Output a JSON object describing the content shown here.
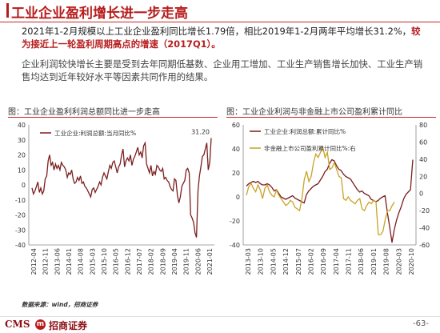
{
  "header": {
    "title": "工业企业盈利增长进一步走高"
  },
  "paragraph1": {
    "plain": "2021年1-2月规模以上工业企业盈利同比增长1.79倍，相比2019年1-2月两年平均增长31.2%，",
    "bold": "较为接近上一轮盈利周期高点的增速（2017Q1）。"
  },
  "paragraph2": "企业利润较快增长主要是受到去年同期低基数、企业用工增加、工业生产销售增长加快、工业生产销售均达到近年较好水平等因素共同作用的结果。",
  "colors": {
    "brand": "#b71c1c",
    "series_dark": "#7b1e1e",
    "series_gold": "#c9a227"
  },
  "chart_left": {
    "title": "图：工业企业盈利利润总额同比进一步走高",
    "chart_data": {
      "type": "line",
      "y_axis": {
        "min": -40,
        "max": 40,
        "ticks": [
          -40,
          -30,
          -20,
          -10,
          0,
          10,
          20,
          30,
          40
        ]
      },
      "x_tick_labels": [
        "2012-04",
        "2012-11",
        "2013-06",
        "2014-01",
        "2014-08",
        "2015-03",
        "2015-10",
        "2016-05",
        "2016-12",
        "2017-07",
        "2018-02",
        "2018-09",
        "2019-04",
        "2019-11",
        "2020-06",
        "2021-01"
      ],
      "series": [
        {
          "name": "工业企业:利润总额:当月同比%",
          "color": "#7b1e1e",
          "values": [
            -2,
            -6,
            -4,
            -1,
            2,
            -5,
            -2,
            -6,
            -4,
            4,
            6,
            16,
            20,
            13,
            15,
            10,
            14,
            11,
            13,
            10,
            15,
            13,
            12,
            10,
            5,
            8,
            7,
            10,
            4,
            1,
            2,
            5,
            3,
            6,
            1,
            2,
            -1,
            -2,
            -4,
            -6,
            -8,
            -3,
            -2,
            -5,
            -3,
            -1,
            2,
            0,
            5,
            8,
            6,
            4,
            9,
            13,
            11,
            15,
            16,
            12,
            8,
            12,
            14,
            20,
            24,
            12,
            16,
            18,
            16,
            20,
            13,
            17,
            19,
            22,
            25,
            20,
            22,
            18,
            26,
            28,
            14,
            11,
            8,
            13,
            6,
            9,
            7,
            13,
            12,
            10,
            9,
            11,
            4,
            5,
            3,
            2,
            -1,
            -3,
            -4,
            4,
            3,
            -7,
            -12,
            -8,
            -1,
            1,
            3,
            10,
            11,
            8,
            -20,
            -22,
            -25,
            -32,
            -35,
            -4,
            6,
            12,
            19,
            20,
            24,
            28,
            10,
            15,
            31.2
          ],
          "last_label": "31.20"
        }
      ]
    }
  },
  "chart_right": {
    "title": "图：工业企业利润与非金融上市公司盈利累计同比",
    "chart_data": {
      "type": "line",
      "y_axis_left": {
        "min": -40,
        "max": 60,
        "ticks": [
          -40,
          -20,
          0,
          20,
          40,
          60
        ]
      },
      "y_axis_right": {
        "min": -60,
        "max": 80,
        "ticks": [
          -60,
          -40,
          -20,
          0,
          20,
          40,
          60,
          80
        ]
      },
      "x_tick_labels": [
        "2013-03",
        "2013-10",
        "2014-05",
        "2014-12",
        "2015-07",
        "2016-02",
        "2016-09",
        "2017-04",
        "2017-11",
        "2018-06",
        "2019-01",
        "2019-08",
        "2020-03",
        "2020-10"
      ],
      "series": [
        {
          "name": "工业企业:利润总额:累计同比%",
          "color": "#7b1e1e",
          "axis": "left",
          "values": [
            9,
            11,
            12,
            13,
            12,
            13,
            11,
            10,
            10,
            11,
            10,
            8,
            5,
            6,
            3,
            0,
            -1,
            -2,
            -1,
            0,
            1,
            -1,
            -2,
            -3,
            -4,
            -5,
            2,
            5,
            7,
            9,
            10,
            11,
            14,
            17,
            21,
            23,
            28,
            31,
            30,
            26,
            23,
            22,
            19,
            17,
            16,
            15,
            12,
            9,
            6,
            4,
            5,
            3,
            2,
            1,
            -2,
            -3,
            -4,
            -3,
            -1,
            0,
            1,
            -13,
            -25,
            -38,
            -27,
            -19,
            -13,
            -8,
            -2,
            2,
            4,
            6,
            31
          ]
        },
        {
          "name": "非金融上市公司盈利累计同比%:右",
          "color": "#c9a227",
          "axis": "right",
          "values": [
            -2,
            8,
            12,
            6,
            2,
            10,
            4,
            -6,
            6,
            10,
            2,
            -2,
            -4,
            4,
            -2,
            -6,
            -10,
            -14,
            -12,
            -8,
            -10,
            -16,
            -18,
            -20,
            -6,
            16,
            26,
            14,
            20,
            36,
            46,
            42,
            48,
            54,
            42,
            48,
            28,
            30,
            36,
            28,
            20,
            18,
            -6,
            -8,
            -4,
            -8,
            -10,
            -12,
            -8,
            -6,
            -18,
            -20,
            -14,
            -10,
            -12,
            -8,
            -10,
            -48,
            -48,
            -44,
            -30,
            -20,
            -20,
            -14,
            -10
          ]
        }
      ]
    }
  },
  "source": "数据来源：wind，招商证券",
  "footer": {
    "logo_cms": "CMS",
    "logo_mark": "m",
    "logo_cn": "招商证券",
    "page": "-63-"
  }
}
